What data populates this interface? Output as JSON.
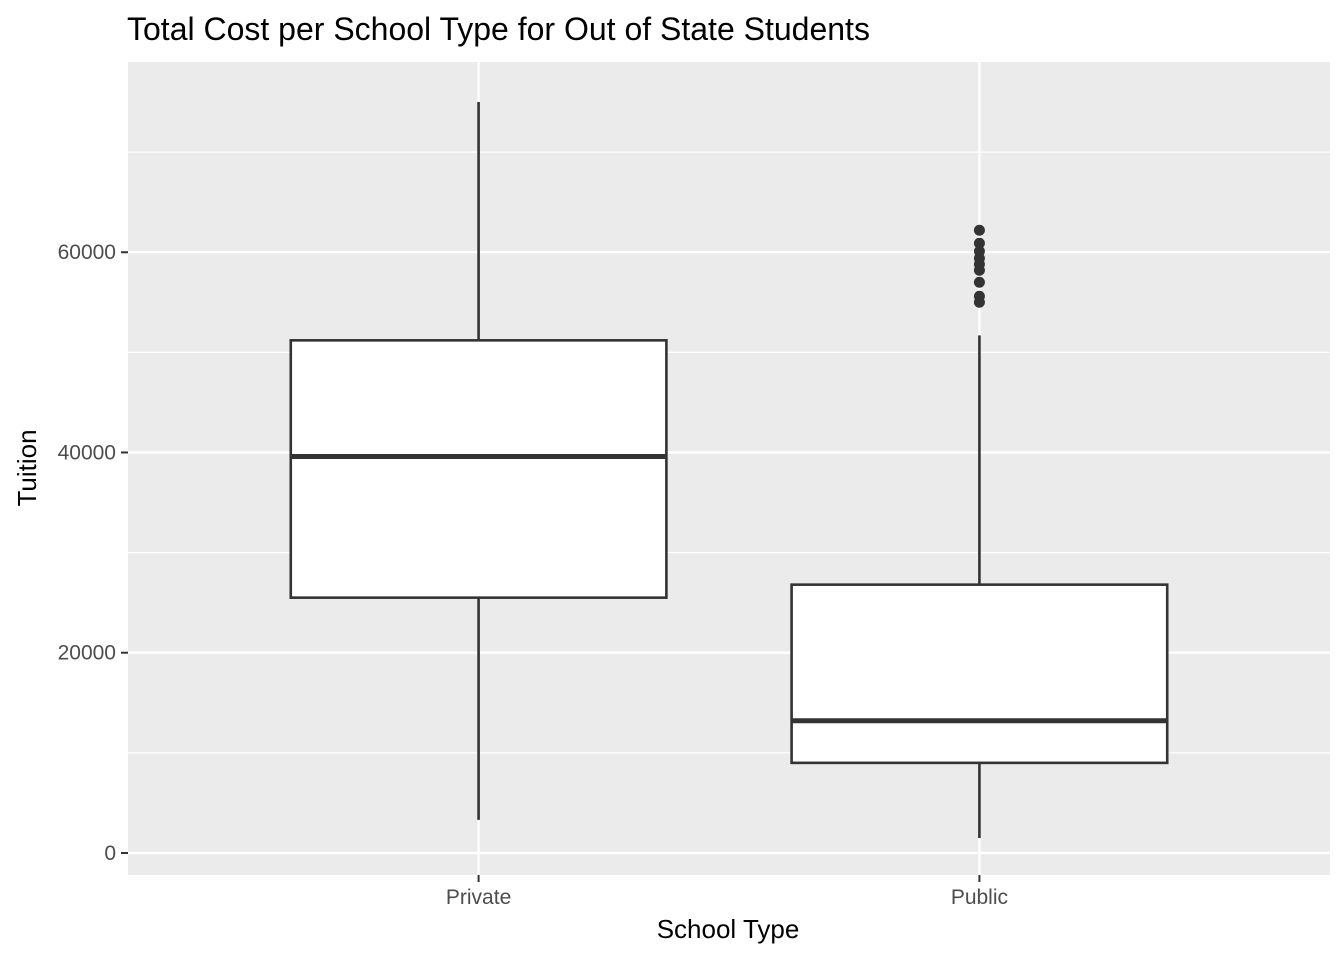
{
  "chart_data": {
    "type": "boxplot",
    "title": "Total Cost per School Type for Out of State Students",
    "xlabel": "School Type",
    "ylabel": "Tuition",
    "ylim": [
      -2200,
      79000
    ],
    "y_ticks": [
      0,
      20000,
      40000,
      60000
    ],
    "y_tick_labels": [
      "0",
      "20000",
      "40000",
      "60000"
    ],
    "y_minor_ticks": [
      10000,
      30000,
      50000,
      70000
    ],
    "categories": [
      "Private",
      "Public"
    ],
    "grid": true,
    "panel_background": "#ebebeb",
    "grid_color": "#ffffff",
    "box_fill": "#ffffff",
    "line_color": "#333333",
    "boxes": [
      {
        "category": "Private",
        "whisker_low": 3300,
        "q1": 25500,
        "median": 39600,
        "q3": 51200,
        "whisker_high": 75000,
        "outliers": []
      },
      {
        "category": "Public",
        "whisker_low": 1500,
        "q1": 9000,
        "median": 13200,
        "q3": 26800,
        "whisker_high": 51700,
        "outliers": [
          55000,
          55600,
          57000,
          58200,
          58800,
          59400,
          60100,
          60900,
          62200
        ]
      }
    ]
  }
}
